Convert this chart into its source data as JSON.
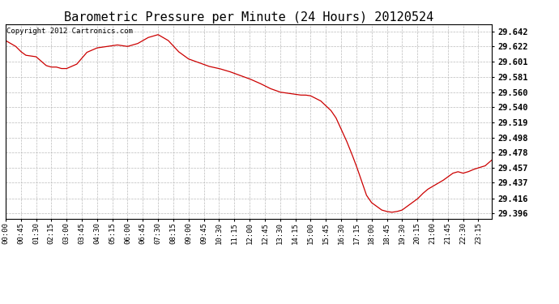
{
  "title": "Barometric Pressure per Minute (24 Hours) 20120524",
  "copyright": "Copyright 2012 Cartronics.com",
  "line_color": "#cc0000",
  "background_color": "#ffffff",
  "grid_color": "#bbbbbb",
  "yticks": [
    29.396,
    29.416,
    29.437,
    29.457,
    29.478,
    29.498,
    29.519,
    29.54,
    29.56,
    29.581,
    29.601,
    29.622,
    29.642
  ],
  "ylim": [
    29.388,
    29.652
  ],
  "xtick_labels": [
    "00:00",
    "00:45",
    "01:30",
    "02:15",
    "03:00",
    "03:45",
    "04:30",
    "05:15",
    "06:00",
    "06:45",
    "07:30",
    "08:15",
    "09:00",
    "09:45",
    "10:30",
    "11:15",
    "12:00",
    "12:45",
    "13:30",
    "14:15",
    "15:00",
    "15:45",
    "16:30",
    "17:15",
    "18:00",
    "18:45",
    "19:30",
    "20:15",
    "21:00",
    "21:45",
    "22:30",
    "23:15"
  ],
  "title_fontsize": 11,
  "axis_fontsize": 6.5,
  "copyright_fontsize": 6.5,
  "key_times": [
    0,
    30,
    45,
    60,
    90,
    105,
    120,
    135,
    150,
    165,
    180,
    210,
    225,
    240,
    270,
    300,
    330,
    360,
    390,
    405,
    420,
    450,
    480,
    510,
    540,
    570,
    600,
    630,
    660,
    690,
    720,
    750,
    780,
    810,
    840,
    855,
    870,
    885,
    900,
    930,
    960,
    975,
    990,
    1005,
    1020,
    1035,
    1050,
    1065,
    1080,
    1095,
    1110,
    1125,
    1140,
    1155,
    1170,
    1185,
    1200,
    1215,
    1230,
    1245,
    1260,
    1275,
    1290,
    1305,
    1320,
    1335,
    1350,
    1365,
    1380,
    1400,
    1415,
    1435
  ],
  "key_vals": [
    29.63,
    29.622,
    29.615,
    29.61,
    29.608,
    29.602,
    29.596,
    29.594,
    29.594,
    29.592,
    29.592,
    29.598,
    29.606,
    29.614,
    29.62,
    29.622,
    29.624,
    29.622,
    29.626,
    29.63,
    29.634,
    29.638,
    29.63,
    29.615,
    29.605,
    29.6,
    29.595,
    29.592,
    29.588,
    29.583,
    29.578,
    29.572,
    29.565,
    29.56,
    29.558,
    29.557,
    29.556,
    29.556,
    29.555,
    29.548,
    29.535,
    29.525,
    29.51,
    29.495,
    29.478,
    29.46,
    29.44,
    29.42,
    29.41,
    29.405,
    29.4,
    29.398,
    29.397,
    29.398,
    29.4,
    29.405,
    29.41,
    29.415,
    29.422,
    29.428,
    29.432,
    29.436,
    29.44,
    29.445,
    29.45,
    29.452,
    29.45,
    29.452,
    29.455,
    29.458,
    29.46,
    29.468
  ]
}
